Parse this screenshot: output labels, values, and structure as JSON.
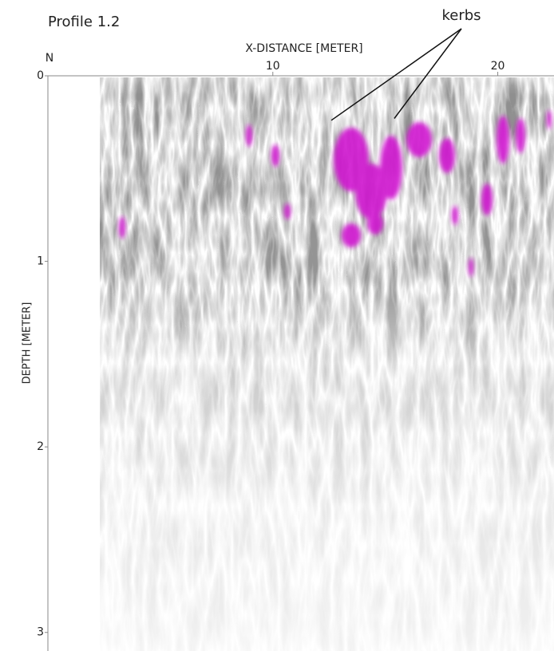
{
  "chart_data": {
    "type": "radargram",
    "title": "Profile 1.2",
    "direction_label": "N",
    "x_label": "X-DISTANCE [METER]",
    "y_label": "DEPTH [METER]",
    "xlim": [
      0,
      22.5
    ],
    "ylim": [
      0,
      3.1
    ],
    "xticks": [
      10,
      20
    ],
    "yticks": [
      0,
      1,
      2,
      3
    ],
    "y_inverted": true,
    "annotations": [
      {
        "text": "kerbs",
        "points": [
          {
            "x": 12.6,
            "y": 0.24
          },
          {
            "x": 15.4,
            "y": 0.23
          }
        ]
      }
    ]
  }
}
